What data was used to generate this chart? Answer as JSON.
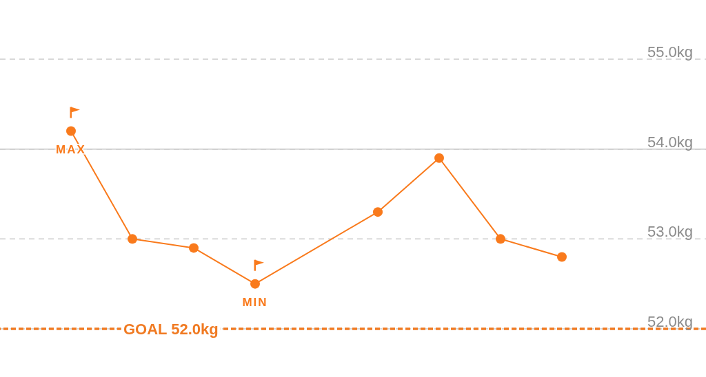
{
  "chart_data": {
    "type": "line",
    "categories": [
      null,
      null,
      null,
      null,
      null,
      null,
      null,
      null,
      null
    ],
    "series": [
      {
        "color": "#f97a1c",
        "values": [
          54.2,
          53.0,
          52.9,
          52.5,
          null,
          53.3,
          53.9,
          53.0,
          52.8
        ]
      }
    ],
    "ylim": [
      52,
      55
    ],
    "yticks": [
      {
        "value": 52,
        "label": "52.0kg"
      },
      {
        "value": 53,
        "label": "53.0kg"
      },
      {
        "value": 54,
        "label": "54.0kg"
      },
      {
        "value": 55,
        "label": "55.0kg"
      }
    ],
    "grid": "y",
    "marker": "circle",
    "line_style": "solid",
    "tick_labels": "y",
    "ref_lines": [
      {
        "axis": "y",
        "value": 54,
        "color": "#c4c4c4",
        "line_style": "solid"
      },
      {
        "axis": "y",
        "value": 52,
        "label": "GOAL 52.0kg",
        "color": "#f07a22",
        "line_style": "dashed"
      }
    ],
    "annotations": [
      {
        "text": "MAX",
        "y": 54.2
      },
      {
        "text": "MIN",
        "y": 52.5
      }
    ]
  }
}
